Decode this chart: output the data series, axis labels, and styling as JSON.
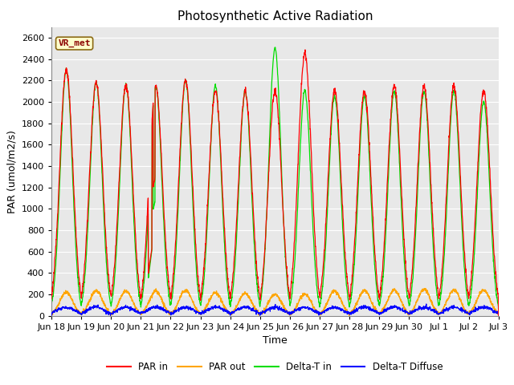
{
  "title": "Photosynthetic Active Radiation",
  "ylabel": "PAR (umol/m2/s)",
  "xlabel": "Time",
  "ylim": [
    0,
    2700
  ],
  "yticks": [
    0,
    200,
    400,
    600,
    800,
    1000,
    1200,
    1400,
    1600,
    1800,
    2000,
    2200,
    2400,
    2600
  ],
  "colors": {
    "PAR in": "#ff0000",
    "PAR out": "#ffa500",
    "Delta-T in": "#00dd00",
    "Delta-T Diffuse": "#0000ff"
  },
  "legend_labels": [
    "PAR in",
    "PAR out",
    "Delta-T in",
    "Delta-T Diffuse"
  ],
  "annotation_text": "VR_met",
  "annotation_color": "#8B0000",
  "annotation_bg": "#ffffcc",
  "annotation_border": "#8B6914",
  "fig_facecolor": "#ffffff",
  "plot_facecolor": "#e8e8e8",
  "grid_color": "#ffffff",
  "title_fontsize": 11,
  "label_fontsize": 9,
  "tick_fontsize": 8,
  "tick_labels": [
    "Jun 18",
    "Jun 19",
    "Jun 20",
    "Jun 21",
    "Jun 22",
    "Jun 23",
    "Jun 24",
    "Jun 25",
    "Jun 26",
    "Jun 27",
    "Jun 28",
    "Jun 29",
    "Jun 30",
    "Jul 1",
    "Jul 2",
    "Jul 3"
  ]
}
